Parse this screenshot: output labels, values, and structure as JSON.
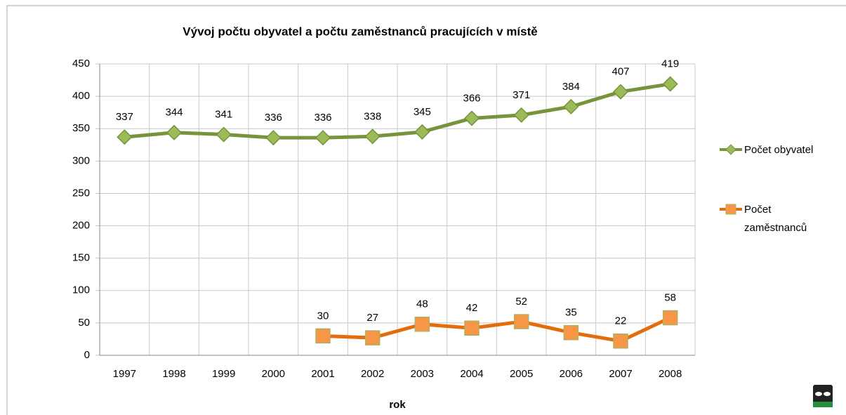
{
  "chart_data": {
    "type": "line",
    "title": "Vývoj počtu obyvatel a počtu zaměstnanců pracujících v místě",
    "x_label": "rok",
    "categories": [
      "1997",
      "1998",
      "1999",
      "2000",
      "2001",
      "2002",
      "2003",
      "2004",
      "2005",
      "2006",
      "2007",
      "2008"
    ],
    "series": [
      {
        "name": "Počet obyvatel",
        "color": "#77933c",
        "marker_color": "#9bbb59",
        "marker": "diamond",
        "values": [
          337,
          344,
          341,
          336,
          336,
          338,
          345,
          366,
          371,
          384,
          407,
          419
        ]
      },
      {
        "name": "Počet zaměstnanců",
        "color": "#e46c0a",
        "marker_color": "#f79646",
        "marker": "square",
        "values": [
          null,
          null,
          null,
          null,
          30,
          27,
          48,
          42,
          52,
          35,
          22,
          58
        ]
      }
    ],
    "ylim": [
      0,
      450
    ],
    "yticks": [
      0,
      50,
      100,
      150,
      200,
      250,
      300,
      350,
      400,
      450
    ],
    "grid": true,
    "legend": "right"
  }
}
